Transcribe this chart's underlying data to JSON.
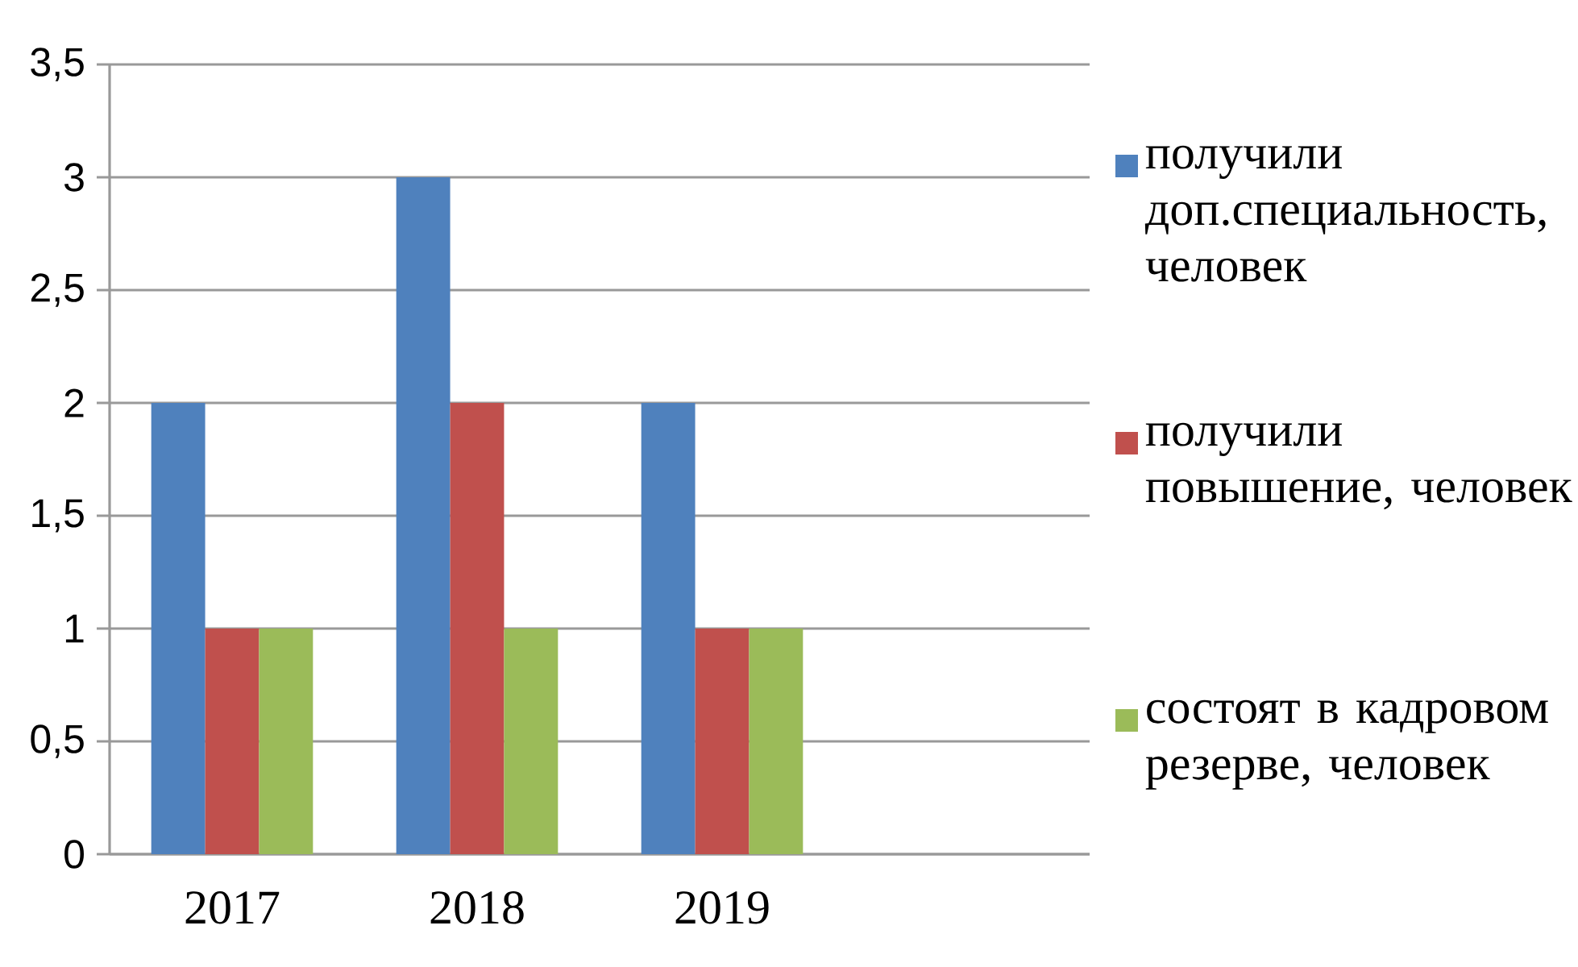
{
  "chart_data": {
    "type": "bar",
    "categories": [
      "2017",
      "2018",
      "2019",
      null
    ],
    "series": [
      {
        "name": "получили доп.специальность, человек",
        "color": "#4f81bd",
        "values": [
          2,
          3,
          2,
          null
        ]
      },
      {
        "name": "получили повышение, человек",
        "color": "#c0504d",
        "values": [
          1,
          2,
          1,
          null
        ]
      },
      {
        "name": "состоят в кадровом резерве, человек",
        "color": "#9bbb59",
        "values": [
          1,
          1,
          1,
          null
        ]
      }
    ],
    "ylim": [
      0,
      3.5
    ],
    "yticks": [
      0,
      {
        "value": 0.5,
        "label": "0,5"
      },
      1,
      {
        "value": 1.5,
        "label": "1,5"
      },
      2,
      {
        "value": 2.5,
        "label": "2,5"
      },
      3,
      {
        "value": 3.5,
        "label": "3,5"
      }
    ],
    "grid": "y",
    "legend": "right"
  }
}
